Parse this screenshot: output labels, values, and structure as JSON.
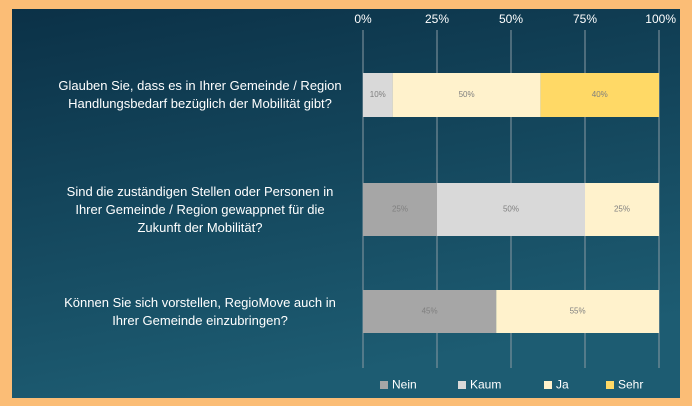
{
  "chart_data": {
    "type": "bar",
    "orientation": "horizontal",
    "stacked": true,
    "categories": [
      "Glauben Sie, dass es in Ihrer Gemeinde / Region Handlungsbedarf bezüglich der Mobilität gibt?",
      "Sind die zuständigen Stellen oder Personen in Ihrer Gemeinde / Region gewappnet für die Zukunft der Mobilität?",
      "Können Sie sich vorstellen, RegioMove auch in Ihrer Gemeinde einzubringen?"
    ],
    "series": [
      {
        "name": "Nein",
        "color": "#a6a6a6",
        "values": [
          null,
          25,
          45
        ],
        "value_labels": [
          null,
          "25%",
          "45%"
        ]
      },
      {
        "name": "Kaum",
        "color": "#d9d9d9",
        "values": [
          10,
          50,
          null
        ],
        "value_labels": [
          "10%",
          "50%",
          null
        ]
      },
      {
        "name": "Ja",
        "color": "#fff2cc",
        "values": [
          50,
          25,
          55
        ],
        "value_labels": [
          "50%",
          "25%",
          "55%"
        ]
      },
      {
        "name": "Sehr",
        "color": "#ffd966",
        "values": [
          40,
          null,
          null
        ],
        "value_labels": [
          "40%",
          null,
          null
        ]
      }
    ],
    "xlim": [
      0,
      100
    ],
    "xticks": [
      {
        "value": 0,
        "label": "0%"
      },
      {
        "value": 25,
        "label": "25%"
      },
      {
        "value": 50,
        "label": "50%"
      },
      {
        "value": 75,
        "label": "75%"
      },
      {
        "value": 100,
        "label": "100%"
      }
    ],
    "grid": true,
    "legend": "bottom"
  }
}
